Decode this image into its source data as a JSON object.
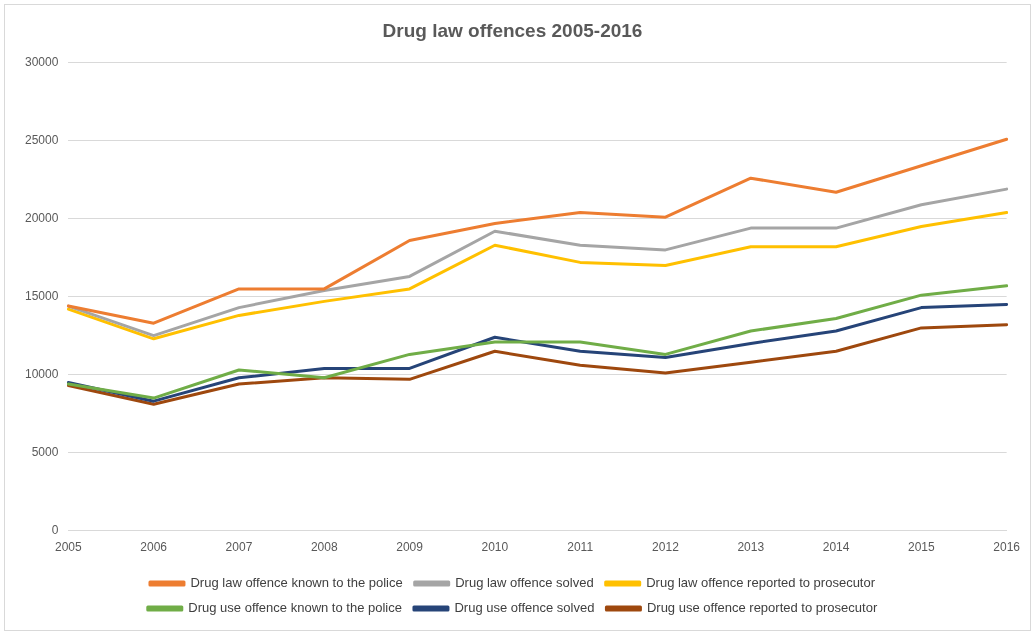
{
  "chart_data": {
    "type": "line",
    "title": "Drug law offences 2005-2016",
    "categories": [
      "2005",
      "2006",
      "2007",
      "2008",
      "2009",
      "2010",
      "2011",
      "2012",
      "2013",
      "2014",
      "2015",
      "2016"
    ],
    "series": [
      {
        "name": "Drug law offence known to the police",
        "color": "#ed7d31",
        "values": [
          14400,
          13300,
          15500,
          15500,
          18600,
          19700,
          20400,
          20100,
          22600,
          21700,
          23400,
          25100
        ]
      },
      {
        "name": "Drug law offence solved",
        "color": "#a5a5a5",
        "values": [
          14400,
          12500,
          14300,
          15400,
          16300,
          19200,
          18300,
          18000,
          19400,
          19400,
          20900,
          21900
        ]
      },
      {
        "name": "Drug law offence reported to prosecutor",
        "color": "#ffc000",
        "values": [
          14200,
          12300,
          13800,
          14700,
          15500,
          18300,
          17200,
          17000,
          18200,
          18200,
          19500,
          20400
        ]
      },
      {
        "name": "Drug use offence known to the police",
        "color": "#70ad47",
        "values": [
          9400,
          8500,
          10300,
          9800,
          11300,
          12100,
          12100,
          11300,
          12800,
          13600,
          15100,
          15700
        ]
      },
      {
        "name": "Drug use offence solved",
        "color": "#264478",
        "values": [
          9500,
          8300,
          9800,
          10400,
          10400,
          12400,
          11500,
          11100,
          12000,
          12800,
          14300,
          14500
        ]
      },
      {
        "name": "Drug use offence reported to prosecutor",
        "color": "#9e480e",
        "values": [
          9300,
          8100,
          9400,
          9800,
          9700,
          11500,
          10600,
          10100,
          10800,
          11500,
          13000,
          13200
        ]
      }
    ],
    "ylim": [
      0,
      30000
    ],
    "yticks": [
      0,
      5000,
      10000,
      15000,
      20000,
      25000,
      30000
    ],
    "grid": "y",
    "legend": "bottom",
    "marker": "none",
    "line_style": "solid"
  }
}
